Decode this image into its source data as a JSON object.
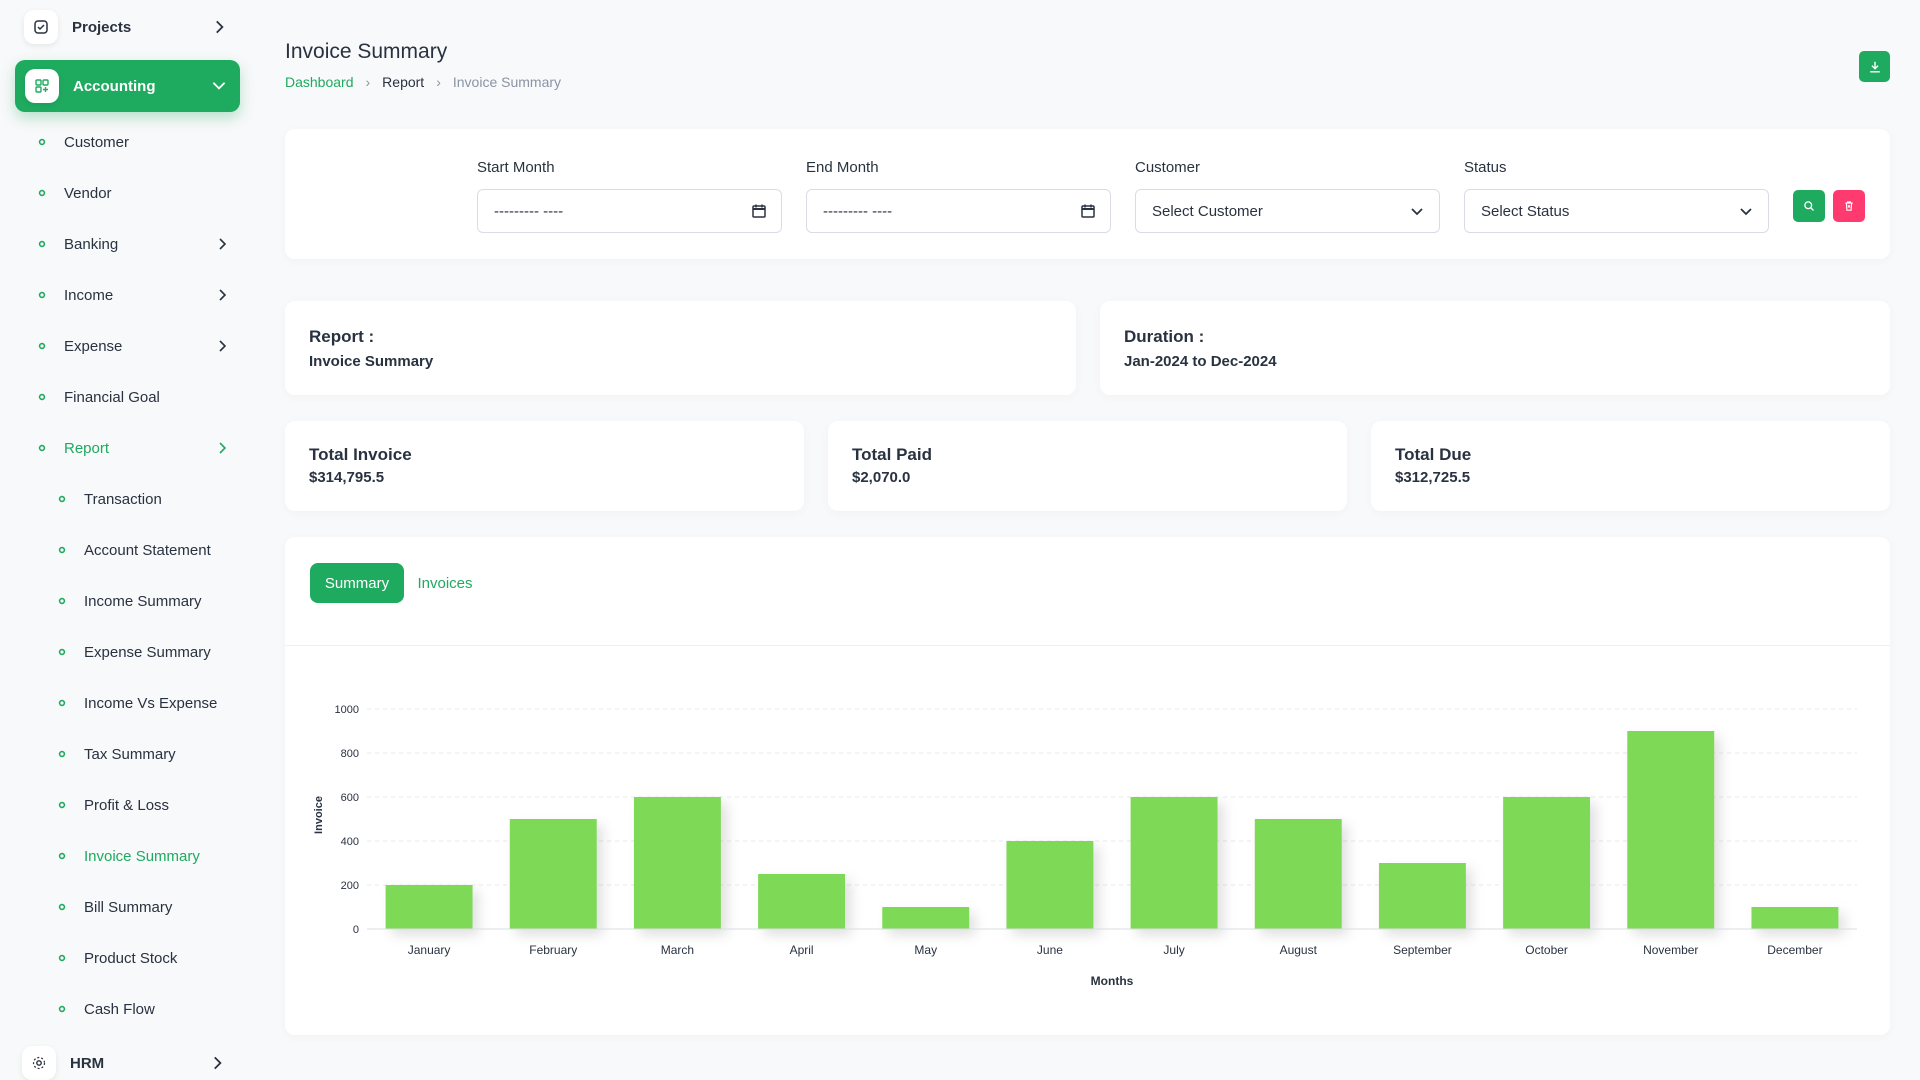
{
  "sidebar": {
    "projects": "Projects",
    "accounting": "Accounting",
    "items": [
      "Customer",
      "Vendor",
      "Banking",
      "Income",
      "Expense",
      "Financial Goal",
      "Report"
    ],
    "report_items": [
      "Transaction",
      "Account Statement",
      "Income Summary",
      "Expense Summary",
      "Income Vs Expense",
      "Tax Summary",
      "Profit & Loss",
      "Invoice Summary",
      "Bill Summary",
      "Product Stock",
      "Cash Flow"
    ],
    "hrm": "HRM"
  },
  "header": {
    "title": "Invoice Summary",
    "breadcrumb": [
      "Dashboard",
      "Report",
      "Invoice Summary"
    ]
  },
  "filters": {
    "start_month_label": "Start Month",
    "start_month_value": "--------- ----",
    "end_month_label": "End Month",
    "end_month_value": "--------- ----",
    "customer_label": "Customer",
    "customer_value": "Select Customer",
    "status_label": "Status",
    "status_value": "Select Status"
  },
  "info": {
    "report_label": "Report :",
    "report_value": "Invoice Summary",
    "duration_label": "Duration :",
    "duration_value": "Jan-2024 to Dec-2024"
  },
  "stats": {
    "total_invoice_label": "Total Invoice",
    "total_invoice_value": "$314,795.5",
    "total_paid_label": "Total Paid",
    "total_paid_value": "$2,070.0",
    "total_due_label": "Total Due",
    "total_due_value": "$312,725.5"
  },
  "tabs": [
    "Summary",
    "Invoices"
  ],
  "colors": {
    "accent": "#1eaa5f",
    "danger": "#ff3a6e",
    "bar": "#7ed957"
  },
  "chart_data": {
    "type": "bar",
    "categories": [
      "January",
      "February",
      "March",
      "April",
      "May",
      "June",
      "July",
      "August",
      "September",
      "October",
      "November",
      "December"
    ],
    "values": [
      200,
      500,
      600,
      250,
      100,
      400,
      600,
      500,
      300,
      600,
      900,
      100
    ],
    "xlabel": "Months",
    "ylabel": "Invoice",
    "ylim": [
      0,
      1000
    ],
    "yticks": [
      0,
      200,
      400,
      600,
      800,
      1000
    ],
    "grid": true
  }
}
